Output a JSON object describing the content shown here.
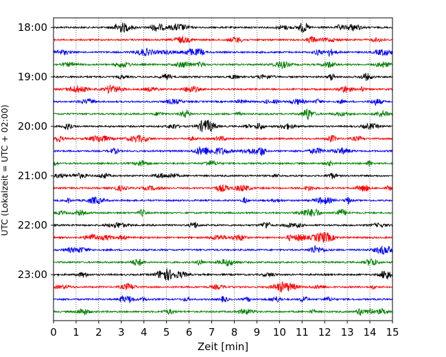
{
  "chart_data": {
    "type": "line",
    "title": "",
    "xlabel": "Zeit  [min]",
    "ylabel": "UTC (Lokalzeit = UTC + 02:00)",
    "xlim": [
      0,
      15
    ],
    "x_ticks": [
      "0",
      "1",
      "2",
      "3",
      "4",
      "5",
      "6",
      "7",
      "8",
      "9",
      "10",
      "11",
      "12",
      "13",
      "14",
      "15"
    ],
    "y_ticks": [
      "18:00",
      "19:00",
      "20:00",
      "21:00",
      "22:00",
      "23:00"
    ],
    "grid": "vertical dotted at each minute",
    "trace_interval_min": 15,
    "color_cycle": [
      "#000000",
      "#ff0000",
      "#0000ff",
      "#008000"
    ],
    "series": [
      {
        "start": "18:00"
      },
      {
        "start": "18:15"
      },
      {
        "start": "18:30"
      },
      {
        "start": "18:45"
      },
      {
        "start": "19:00"
      },
      {
        "start": "19:15"
      },
      {
        "start": "19:30"
      },
      {
        "start": "19:45"
      },
      {
        "start": "20:00"
      },
      {
        "start": "20:15"
      },
      {
        "start": "20:30"
      },
      {
        "start": "20:45"
      },
      {
        "start": "21:00"
      },
      {
        "start": "21:15"
      },
      {
        "start": "21:30"
      },
      {
        "start": "21:45"
      },
      {
        "start": "22:00"
      },
      {
        "start": "22:15"
      },
      {
        "start": "22:30"
      },
      {
        "start": "22:45"
      },
      {
        "start": "23:00"
      },
      {
        "start": "23:15"
      },
      {
        "start": "23:30"
      },
      {
        "start": "23:45"
      }
    ]
  }
}
